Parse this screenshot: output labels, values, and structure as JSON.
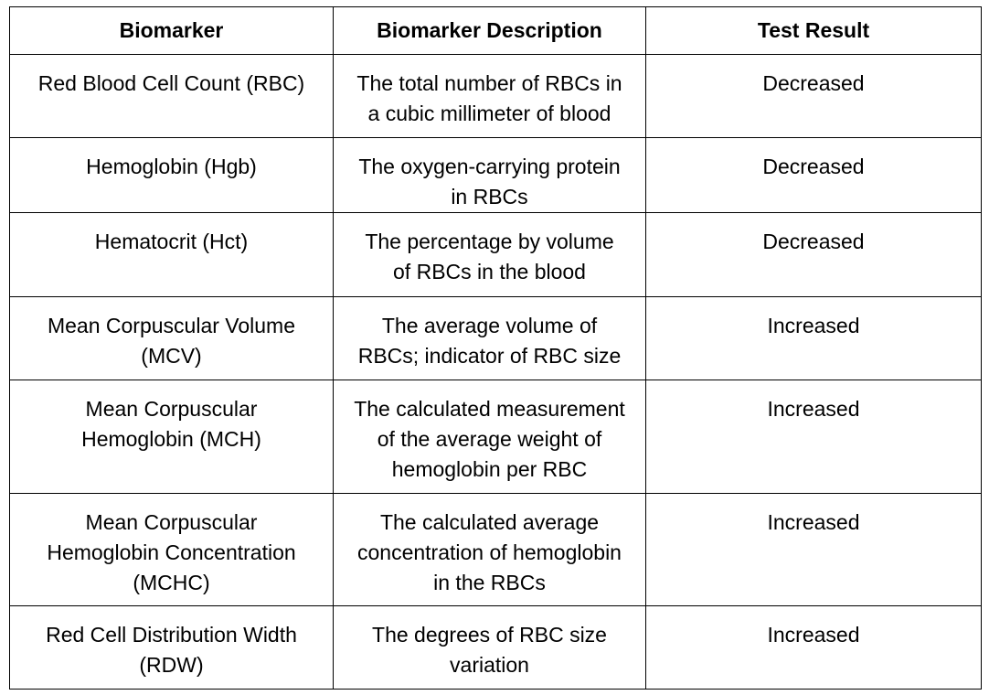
{
  "table": {
    "headers": [
      "Biomarker",
      "Biomarker Description",
      "Test Result"
    ],
    "rows": [
      {
        "biomarker": [
          "Red Blood Cell Count (RBC)"
        ],
        "description": [
          "The total number of RBCs in",
          "a cubic millimeter of blood"
        ],
        "result": "Decreased"
      },
      {
        "biomarker": [
          "Hemoglobin (Hgb)"
        ],
        "description": [
          "The oxygen-carrying protein",
          "in RBCs"
        ],
        "result": "Decreased"
      },
      {
        "biomarker": [
          "Hematocrit (Hct)"
        ],
        "description": [
          "The percentage by volume",
          "of RBCs in the blood"
        ],
        "result": "Decreased"
      },
      {
        "biomarker": [
          "Mean Corpuscular Volume",
          "(MCV)"
        ],
        "description": [
          "The average volume of",
          "RBCs; indicator of RBC size"
        ],
        "result": "Increased"
      },
      {
        "biomarker": [
          "Mean Corpuscular",
          "Hemoglobin (MCH)"
        ],
        "description": [
          "The calculated measurement",
          "of the average weight of",
          "hemoglobin per RBC"
        ],
        "result": "Increased"
      },
      {
        "biomarker": [
          "Mean Corpuscular",
          "Hemoglobin Concentration",
          "(MCHC)"
        ],
        "description": [
          "The calculated average",
          "concentration of hemoglobin",
          "in the RBCs"
        ],
        "result": "Increased"
      },
      {
        "biomarker": [
          "Red Cell Distribution Width",
          "(RDW)"
        ],
        "description": [
          "The degrees of RBC size",
          "variation"
        ],
        "result": "Increased"
      }
    ]
  }
}
